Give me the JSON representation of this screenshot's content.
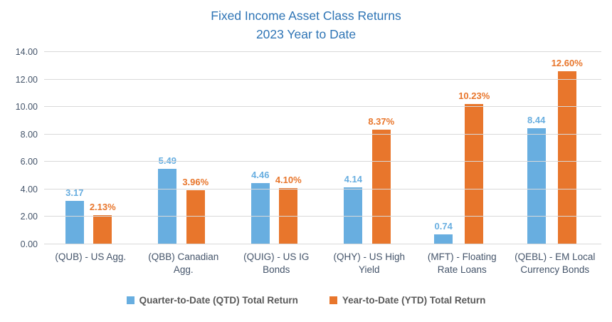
{
  "title": {
    "line1": "Fixed Income Asset Class Returns",
    "line2": "2023 Year to Date"
  },
  "colors": {
    "title": "#2E74B5",
    "axis_text": "#44546A",
    "gridline": "#D9D9D9",
    "legend_text": "#595959",
    "qtd_blue": "#68AEE0",
    "ytd_orange": "#E8762C"
  },
  "chart_data": {
    "type": "bar",
    "title": "Fixed Income Asset Class Returns 2023 Year to Date",
    "categories": [
      "(QUB) - US Agg.",
      "(QBB) Canadian Agg.",
      "(QUIG) - US IG Bonds",
      "(QHY) - US High Yield",
      "(MFT) - Floating Rate Loans",
      "(QEBL) - EM Local Currency Bonds"
    ],
    "series": [
      {
        "name": "Quarter-to-Date (QTD) Total Return",
        "color": "#68AEE0",
        "values": [
          3.17,
          5.49,
          4.46,
          4.14,
          0.74,
          8.44
        ],
        "labels": [
          "3.17",
          "5.49",
          "4.46",
          "4.14",
          "0.74",
          "8.44"
        ]
      },
      {
        "name": "Year-to-Date (YTD) Total Return",
        "color": "#E8762C",
        "values": [
          2.13,
          3.96,
          4.1,
          8.37,
          10.23,
          12.6
        ],
        "labels": [
          "2.13%",
          "3.96%",
          "4.10%",
          "8.37%",
          "10.23%",
          "12.60%"
        ]
      }
    ],
    "xlabel": "",
    "ylabel": "",
    "ylim": [
      0,
      14
    ],
    "yticks": [
      "0.00",
      "2.00",
      "4.00",
      "6.00",
      "8.00",
      "10.00",
      "12.00",
      "14.00"
    ],
    "grid": true,
    "legend_position": "bottom"
  }
}
